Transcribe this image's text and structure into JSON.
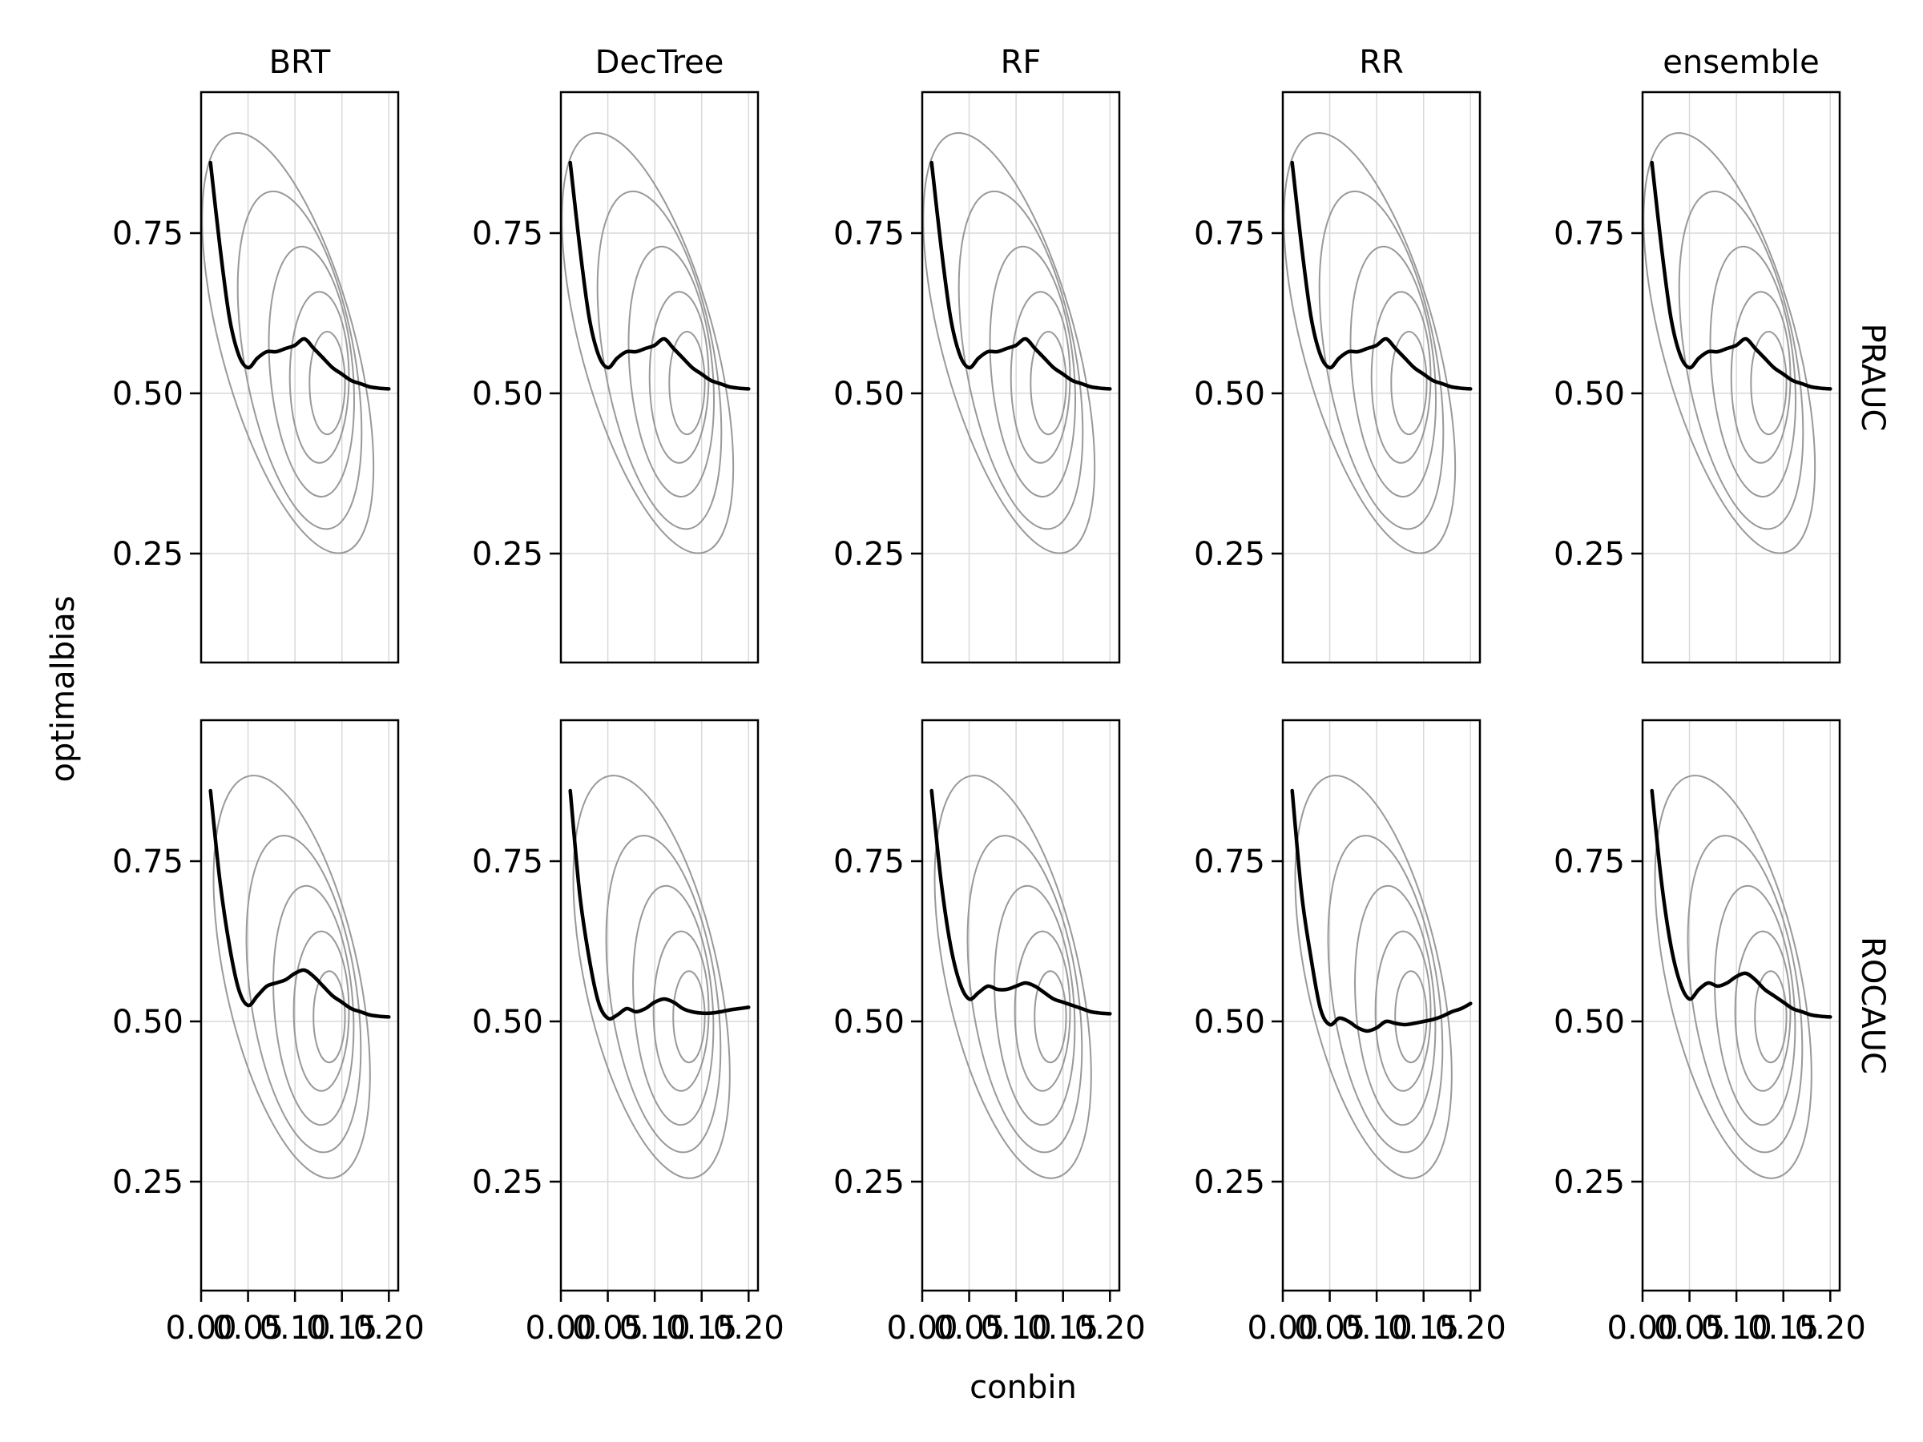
{
  "chart_data": {
    "type": "line",
    "xlabel": "conbin",
    "ylabel": "optimalbias",
    "columns": [
      "BRT",
      "DecTree",
      "RF",
      "RR",
      "ensemble"
    ],
    "rows": [
      "PRAUC",
      "ROCAUC"
    ],
    "xlim": [
      0.0,
      0.21
    ],
    "ylim": [
      0.08,
      0.97
    ],
    "x_ticks": [
      0.0,
      0.05,
      0.1,
      0.15,
      0.2
    ],
    "x_tick_labels": [
      "0.00",
      "0.05",
      "0.10",
      "0.15",
      "0.20"
    ],
    "y_ticks": [
      0.25,
      0.5,
      0.75
    ],
    "y_tick_labels": [
      "0.25",
      "0.50",
      "0.75"
    ],
    "grid": true,
    "line_color": "#000000",
    "contour_color": "#999999",
    "panels": [
      {
        "row": "PRAUC",
        "column": "BRT",
        "x": [
          0.01,
          0.02,
          0.03,
          0.04,
          0.05,
          0.06,
          0.07,
          0.08,
          0.09,
          0.1,
          0.11,
          0.12,
          0.13,
          0.14,
          0.15,
          0.16,
          0.17,
          0.18,
          0.19,
          0.2
        ],
        "y": [
          0.86,
          0.73,
          0.62,
          0.56,
          0.54,
          0.555,
          0.565,
          0.565,
          0.57,
          0.575,
          0.585,
          0.57,
          0.555,
          0.54,
          0.53,
          0.52,
          0.515,
          0.51,
          0.508,
          0.507
        ]
      },
      {
        "row": "PRAUC",
        "column": "DecTree",
        "x": [
          0.01,
          0.02,
          0.03,
          0.04,
          0.05,
          0.06,
          0.07,
          0.08,
          0.09,
          0.1,
          0.11,
          0.12,
          0.13,
          0.14,
          0.15,
          0.16,
          0.17,
          0.18,
          0.19,
          0.2
        ],
        "y": [
          0.86,
          0.73,
          0.62,
          0.56,
          0.54,
          0.555,
          0.565,
          0.565,
          0.57,
          0.575,
          0.585,
          0.57,
          0.555,
          0.54,
          0.53,
          0.52,
          0.515,
          0.51,
          0.508,
          0.507
        ]
      },
      {
        "row": "PRAUC",
        "column": "RF",
        "x": [
          0.01,
          0.02,
          0.03,
          0.04,
          0.05,
          0.06,
          0.07,
          0.08,
          0.09,
          0.1,
          0.11,
          0.12,
          0.13,
          0.14,
          0.15,
          0.16,
          0.17,
          0.18,
          0.19,
          0.2
        ],
        "y": [
          0.86,
          0.73,
          0.62,
          0.56,
          0.54,
          0.555,
          0.565,
          0.565,
          0.57,
          0.575,
          0.585,
          0.57,
          0.555,
          0.54,
          0.53,
          0.52,
          0.515,
          0.51,
          0.508,
          0.507
        ]
      },
      {
        "row": "PRAUC",
        "column": "RR",
        "x": [
          0.01,
          0.02,
          0.03,
          0.04,
          0.05,
          0.06,
          0.07,
          0.08,
          0.09,
          0.1,
          0.11,
          0.12,
          0.13,
          0.14,
          0.15,
          0.16,
          0.17,
          0.18,
          0.19,
          0.2
        ],
        "y": [
          0.86,
          0.73,
          0.62,
          0.56,
          0.54,
          0.555,
          0.565,
          0.565,
          0.57,
          0.575,
          0.585,
          0.57,
          0.555,
          0.54,
          0.53,
          0.52,
          0.515,
          0.51,
          0.508,
          0.507
        ]
      },
      {
        "row": "PRAUC",
        "column": "ensemble",
        "x": [
          0.01,
          0.02,
          0.03,
          0.04,
          0.05,
          0.06,
          0.07,
          0.08,
          0.09,
          0.1,
          0.11,
          0.12,
          0.13,
          0.14,
          0.15,
          0.16,
          0.17,
          0.18,
          0.19,
          0.2
        ],
        "y": [
          0.86,
          0.73,
          0.62,
          0.56,
          0.54,
          0.555,
          0.565,
          0.565,
          0.57,
          0.575,
          0.585,
          0.57,
          0.555,
          0.54,
          0.53,
          0.52,
          0.515,
          0.51,
          0.508,
          0.507
        ]
      },
      {
        "row": "ROCAUC",
        "column": "BRT",
        "x": [
          0.01,
          0.02,
          0.03,
          0.04,
          0.05,
          0.06,
          0.07,
          0.08,
          0.09,
          0.1,
          0.11,
          0.12,
          0.13,
          0.14,
          0.15,
          0.16,
          0.17,
          0.18,
          0.19,
          0.2
        ],
        "y": [
          0.86,
          0.72,
          0.62,
          0.55,
          0.525,
          0.54,
          0.555,
          0.56,
          0.565,
          0.575,
          0.58,
          0.57,
          0.555,
          0.54,
          0.53,
          0.52,
          0.515,
          0.51,
          0.508,
          0.507
        ]
      },
      {
        "row": "ROCAUC",
        "column": "DecTree",
        "x": [
          0.01,
          0.02,
          0.03,
          0.04,
          0.05,
          0.06,
          0.07,
          0.08,
          0.09,
          0.1,
          0.11,
          0.12,
          0.13,
          0.14,
          0.15,
          0.16,
          0.17,
          0.18,
          0.19,
          0.2
        ],
        "y": [
          0.86,
          0.7,
          0.6,
          0.53,
          0.505,
          0.51,
          0.52,
          0.515,
          0.52,
          0.53,
          0.535,
          0.53,
          0.52,
          0.515,
          0.513,
          0.513,
          0.515,
          0.518,
          0.52,
          0.522
        ]
      },
      {
        "row": "ROCAUC",
        "column": "RF",
        "x": [
          0.01,
          0.02,
          0.03,
          0.04,
          0.05,
          0.06,
          0.07,
          0.08,
          0.09,
          0.1,
          0.11,
          0.12,
          0.13,
          0.14,
          0.15,
          0.16,
          0.17,
          0.18,
          0.19,
          0.2
        ],
        "y": [
          0.86,
          0.72,
          0.62,
          0.56,
          0.535,
          0.545,
          0.555,
          0.55,
          0.55,
          0.555,
          0.56,
          0.555,
          0.545,
          0.535,
          0.53,
          0.525,
          0.52,
          0.515,
          0.513,
          0.512
        ]
      },
      {
        "row": "ROCAUC",
        "column": "RR",
        "x": [
          0.01,
          0.02,
          0.03,
          0.04,
          0.05,
          0.06,
          0.07,
          0.08,
          0.09,
          0.1,
          0.11,
          0.12,
          0.13,
          0.14,
          0.15,
          0.16,
          0.17,
          0.18,
          0.19,
          0.2
        ],
        "y": [
          0.86,
          0.7,
          0.6,
          0.52,
          0.495,
          0.505,
          0.5,
          0.49,
          0.485,
          0.49,
          0.5,
          0.497,
          0.495,
          0.497,
          0.5,
          0.503,
          0.508,
          0.515,
          0.52,
          0.528
        ]
      },
      {
        "row": "ROCAUC",
        "column": "ensemble",
        "x": [
          0.01,
          0.02,
          0.03,
          0.04,
          0.05,
          0.06,
          0.07,
          0.08,
          0.09,
          0.1,
          0.11,
          0.12,
          0.13,
          0.14,
          0.15,
          0.16,
          0.17,
          0.18,
          0.19,
          0.2
        ],
        "y": [
          0.86,
          0.72,
          0.62,
          0.56,
          0.535,
          0.55,
          0.56,
          0.555,
          0.56,
          0.57,
          0.575,
          0.565,
          0.55,
          0.54,
          0.53,
          0.52,
          0.515,
          0.51,
          0.508,
          0.507
        ]
      }
    ]
  }
}
